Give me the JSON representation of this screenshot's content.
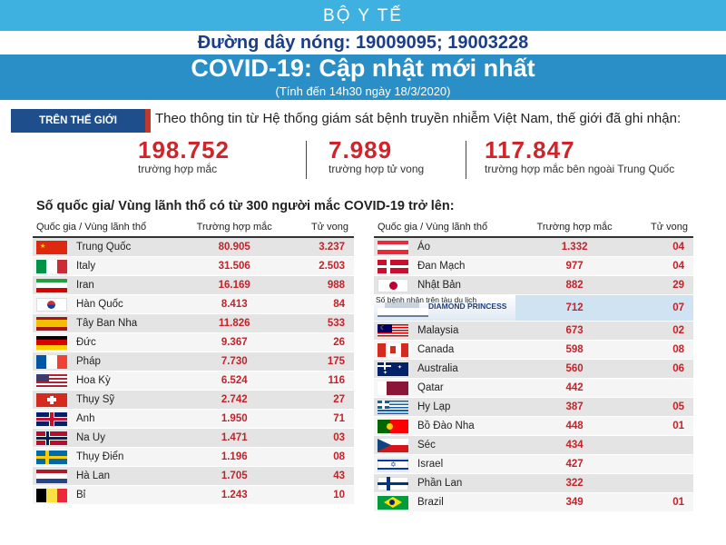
{
  "header": {
    "ministry": "BỘ Y TẾ",
    "hotline": "Đường dây nóng: 19009095; 19003228",
    "title": "COVID-19: Cập nhật mới nhất",
    "subtitle": "(Tính đến 14h30 ngày 18/3/2020)"
  },
  "world": {
    "badge": "TRÊN THẾ GIỚI",
    "intro": "Theo thông tin từ Hệ thống giám sát bệnh truyền nhiễm Việt Nam, thế giới đã ghi nhận:",
    "stats": [
      {
        "value": "198.752",
        "label": "trường hợp mắc"
      },
      {
        "value": "7.989",
        "label": "trường hợp tử vong"
      },
      {
        "value": "117.847",
        "label": "trường hợp mắc bên ngoài Trung Quốc"
      }
    ]
  },
  "section_title": "Số quốc gia/ Vùng lãnh thổ có từ 300 người mắc COVID-19 trở lên:",
  "columns": {
    "country": "Quốc gia / Vùng lãnh thổ",
    "cases": "Trường hợp mắc",
    "deaths": "Tử vong"
  },
  "left_rows": [
    {
      "name": "Trung Quốc",
      "cases": "80.905",
      "deaths": "3.237",
      "flag": "china-flag"
    },
    {
      "name": "Italy",
      "cases": "31.506",
      "deaths": "2.503",
      "flag": "italy-flag"
    },
    {
      "name": "Iran",
      "cases": "16.169",
      "deaths": "988",
      "flag": "iran-flag"
    },
    {
      "name": "Hàn Quốc",
      "cases": "8.413",
      "deaths": "84",
      "flag": "korea-flag"
    },
    {
      "name": "Tây Ban Nha",
      "cases": "11.826",
      "deaths": "533",
      "flag": "spain-flag"
    },
    {
      "name": "Đức",
      "cases": "9.367",
      "deaths": "26",
      "flag": "germany-flag"
    },
    {
      "name": "Pháp",
      "cases": "7.730",
      "deaths": "175",
      "flag": "france-flag"
    },
    {
      "name": "Hoa Kỳ",
      "cases": "6.524",
      "deaths": "116",
      "flag": "usa-flag"
    },
    {
      "name": "Thụy Sỹ",
      "cases": "2.742",
      "deaths": "27",
      "flag": "switzerland-flag"
    },
    {
      "name": "Anh",
      "cases": "1.950",
      "deaths": "71",
      "flag": "uk-flag"
    },
    {
      "name": "Na Uy",
      "cases": "1.471",
      "deaths": "03",
      "flag": "norway-flag"
    },
    {
      "name": "Thụy Điển",
      "cases": "1.196",
      "deaths": "08",
      "flag": "sweden-flag"
    },
    {
      "name": "Hà Lan",
      "cases": "1.705",
      "deaths": "43",
      "flag": "netherlands-flag"
    },
    {
      "name": "Bỉ",
      "cases": "1.243",
      "deaths": "10",
      "flag": "belgium-flag"
    }
  ],
  "right_rows": [
    {
      "name": "Áo",
      "cases": "1.332",
      "deaths": "04",
      "flag": "austria-flag"
    },
    {
      "name": "Đan Mạch",
      "cases": "977",
      "deaths": "04",
      "flag": "denmark-flag"
    },
    {
      "name": "Nhật Bản",
      "cases": "882",
      "deaths": "29",
      "flag": "japan-flag"
    },
    {
      "name": "Số bệnh nhân trên tàu du lịch",
      "ship": "DIAMOND PRINCESS",
      "cases": "712",
      "deaths": "07",
      "flag": "ship-image"
    },
    {
      "name": "Malaysia",
      "cases": "673",
      "deaths": "02",
      "flag": "malaysia-flag"
    },
    {
      "name": "Canada",
      "cases": "598",
      "deaths": "08",
      "flag": "canada-flag"
    },
    {
      "name": "Australia",
      "cases": "560",
      "deaths": "06",
      "flag": "australia-flag"
    },
    {
      "name": "Qatar",
      "cases": "442",
      "deaths": "",
      "flag": "qatar-flag"
    },
    {
      "name": "Hy Lạp",
      "cases": "387",
      "deaths": "05",
      "flag": "greece-flag"
    },
    {
      "name": "Bồ Đào Nha",
      "cases": "448",
      "deaths": "01",
      "flag": "portugal-flag"
    },
    {
      "name": "Séc",
      "cases": "434",
      "deaths": "",
      "flag": "czech-flag"
    },
    {
      "name": "Israel",
      "cases": "427",
      "deaths": "",
      "flag": "israel-flag"
    },
    {
      "name": "Phần Lan",
      "cases": "322",
      "deaths": "",
      "flag": "finland-flag"
    },
    {
      "name": "Brazil",
      "cases": "349",
      "deaths": "01",
      "flag": "brazil-flag"
    }
  ]
}
